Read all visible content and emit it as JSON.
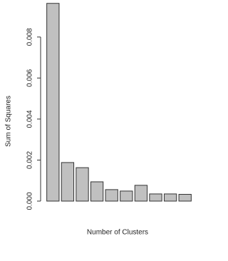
{
  "chart_data": {
    "type": "bar",
    "x_label": "Number of Clusters",
    "y_label": "Sum of Squares",
    "values": [
      0.00964,
      0.00188,
      0.00163,
      0.00094,
      0.00056,
      0.00049,
      0.00077,
      0.00035,
      0.00035,
      0.00033
    ],
    "color": "#c0c0c0",
    "ylim": [
      0,
      0.0097
    ],
    "yticks": [
      {
        "value": 0,
        "label": "0.000"
      },
      {
        "value": 0.002,
        "label": "0.002"
      },
      {
        "value": 0.004,
        "label": "0.004"
      },
      {
        "value": 0.006,
        "label": "0.006"
      },
      {
        "value": 0.008,
        "label": "0.008"
      }
    ]
  }
}
